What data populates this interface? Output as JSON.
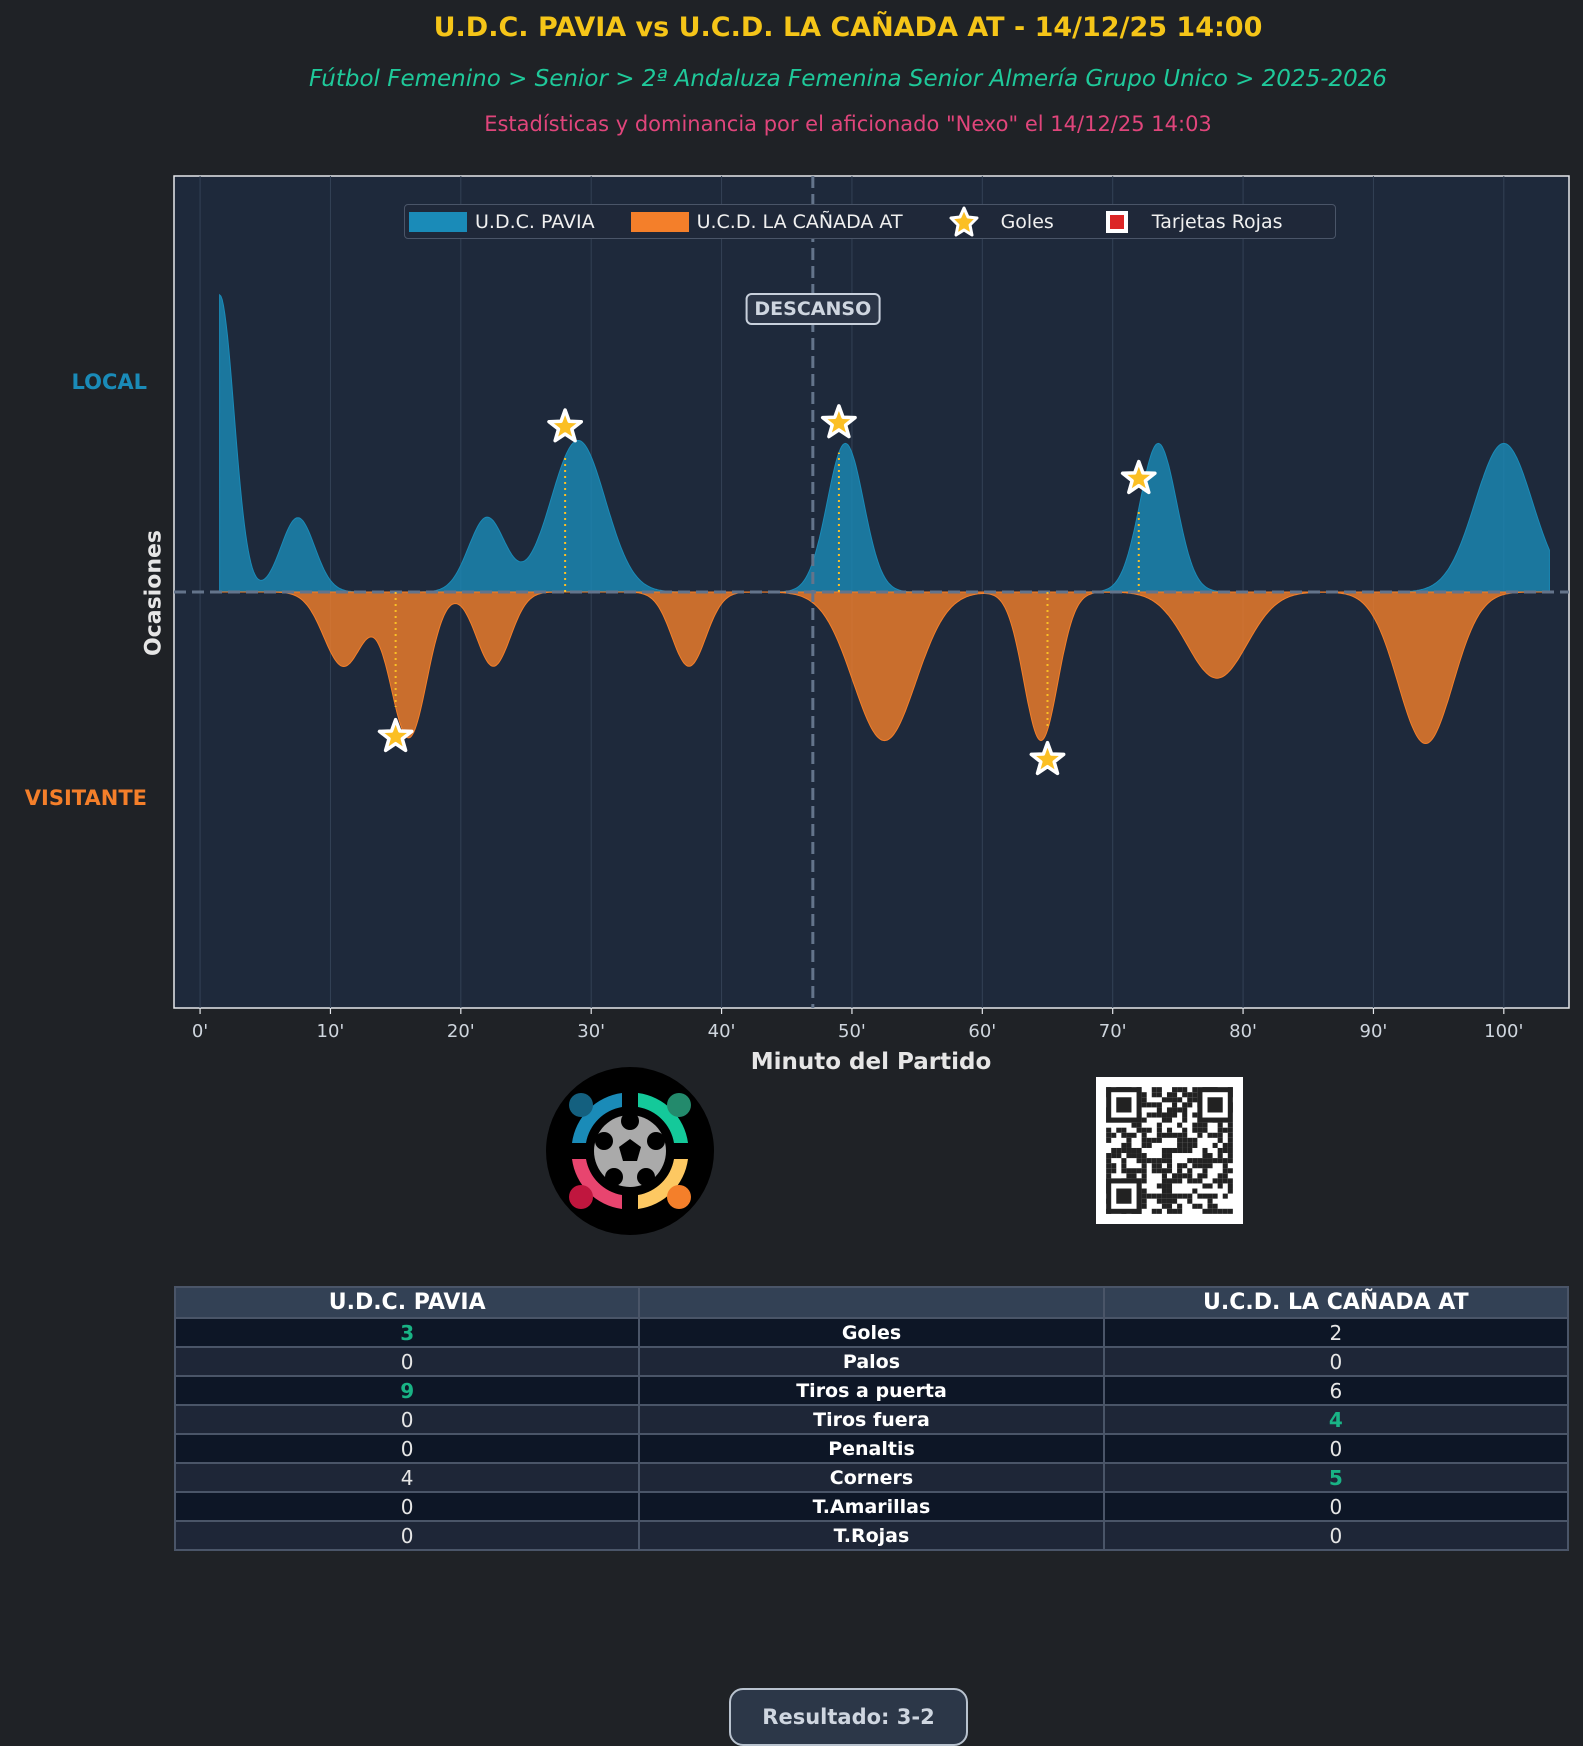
{
  "header": {
    "title": "U.D.C. PAVIA vs U.C.D. LA CAÑADA AT - 14/12/25 14:00",
    "subtitle": "Fútbol Femenino > Senior > 2ª Andaluza Femenina Senior Almería Grupo Unico > 2025-2026",
    "credit": "Estadísticas y dominancia por el aficionado \"Nexo\" el 14/12/25 14:03"
  },
  "chart_data": {
    "type": "area",
    "xlabel": "Minuto del Partido",
    "ylabel": "Ocasiones",
    "side_labels": {
      "top": "LOCAL",
      "bottom": "VISITANTE"
    },
    "xlim": [
      -2,
      105
    ],
    "ylim": [
      -1.4,
      1.4
    ],
    "xticks": [
      "0'",
      "10'",
      "20'",
      "30'",
      "40'",
      "50'",
      "60'",
      "70'",
      "80'",
      "90'",
      "100'"
    ],
    "xtick_values": [
      0,
      10,
      20,
      30,
      40,
      50,
      60,
      70,
      80,
      90,
      100
    ],
    "halftime": {
      "minute": 47,
      "label": "DESCANSO"
    },
    "x_range": [
      1.5,
      103.5
    ],
    "series": [
      {
        "name": "U.D.C. PAVIA",
        "color": "#1a8bb8",
        "sign": 1,
        "peaks": [
          {
            "minute": 1.5,
            "value": 1.0,
            "spread": 1.1
          },
          {
            "minute": 7.5,
            "value": 0.25,
            "spread": 1.3
          },
          {
            "minute": 22,
            "value": 0.25,
            "spread": 1.4
          },
          {
            "minute": 29,
            "value": 0.51,
            "spread": 2.1
          },
          {
            "minute": 49.5,
            "value": 0.5,
            "spread": 1.4
          },
          {
            "minute": 73.5,
            "value": 0.5,
            "spread": 1.4
          },
          {
            "minute": 100,
            "value": 0.5,
            "spread": 2.2
          }
        ]
      },
      {
        "name": "U.C.D. LA CAÑADA AT",
        "color": "#f47f2a",
        "sign": -1,
        "peaks": [
          {
            "minute": 11,
            "value": 0.25,
            "spread": 1.5
          },
          {
            "minute": 16,
            "value": 0.49,
            "spread": 1.4
          },
          {
            "minute": 22.5,
            "value": 0.25,
            "spread": 1.3
          },
          {
            "minute": 37.5,
            "value": 0.25,
            "spread": 1.3
          },
          {
            "minute": 52.5,
            "value": 0.5,
            "spread": 2.4
          },
          {
            "minute": 64.5,
            "value": 0.5,
            "spread": 1.3
          },
          {
            "minute": 78,
            "value": 0.29,
            "spread": 2.3
          },
          {
            "minute": 94,
            "value": 0.51,
            "spread": 2.1
          }
        ]
      }
    ],
    "goals": {
      "home": [
        28,
        49,
        72
      ],
      "away": [
        15,
        65
      ]
    },
    "red_cards": {
      "home": [],
      "away": []
    },
    "legend": {
      "placement": "top-center",
      "items": [
        "U.D.C. PAVIA",
        "U.C.D. LA CAÑADA AT",
        "Goles",
        "Tarjetas Rojas"
      ]
    }
  },
  "stats": {
    "home_team": "U.D.C. PAVIA",
    "away_team": "U.C.D. LA CAÑADA AT",
    "rows": [
      {
        "label": "Goles",
        "home": "3",
        "away": "2",
        "winner": "home"
      },
      {
        "label": "Palos",
        "home": "0",
        "away": "0",
        "winner": ""
      },
      {
        "label": "Tiros a puerta",
        "home": "9",
        "away": "6",
        "winner": "home"
      },
      {
        "label": "Tiros fuera",
        "home": "0",
        "away": "4",
        "winner": "away"
      },
      {
        "label": "Penaltis",
        "home": "0",
        "away": "0",
        "winner": ""
      },
      {
        "label": "Corners",
        "home": "4",
        "away": "5",
        "winner": "away"
      },
      {
        "label": "T.Amarillas",
        "home": "0",
        "away": "0",
        "winner": ""
      },
      {
        "label": "T.Rojas",
        "home": "0",
        "away": "0",
        "winner": ""
      }
    ]
  },
  "result": "Resultado: 3-2"
}
